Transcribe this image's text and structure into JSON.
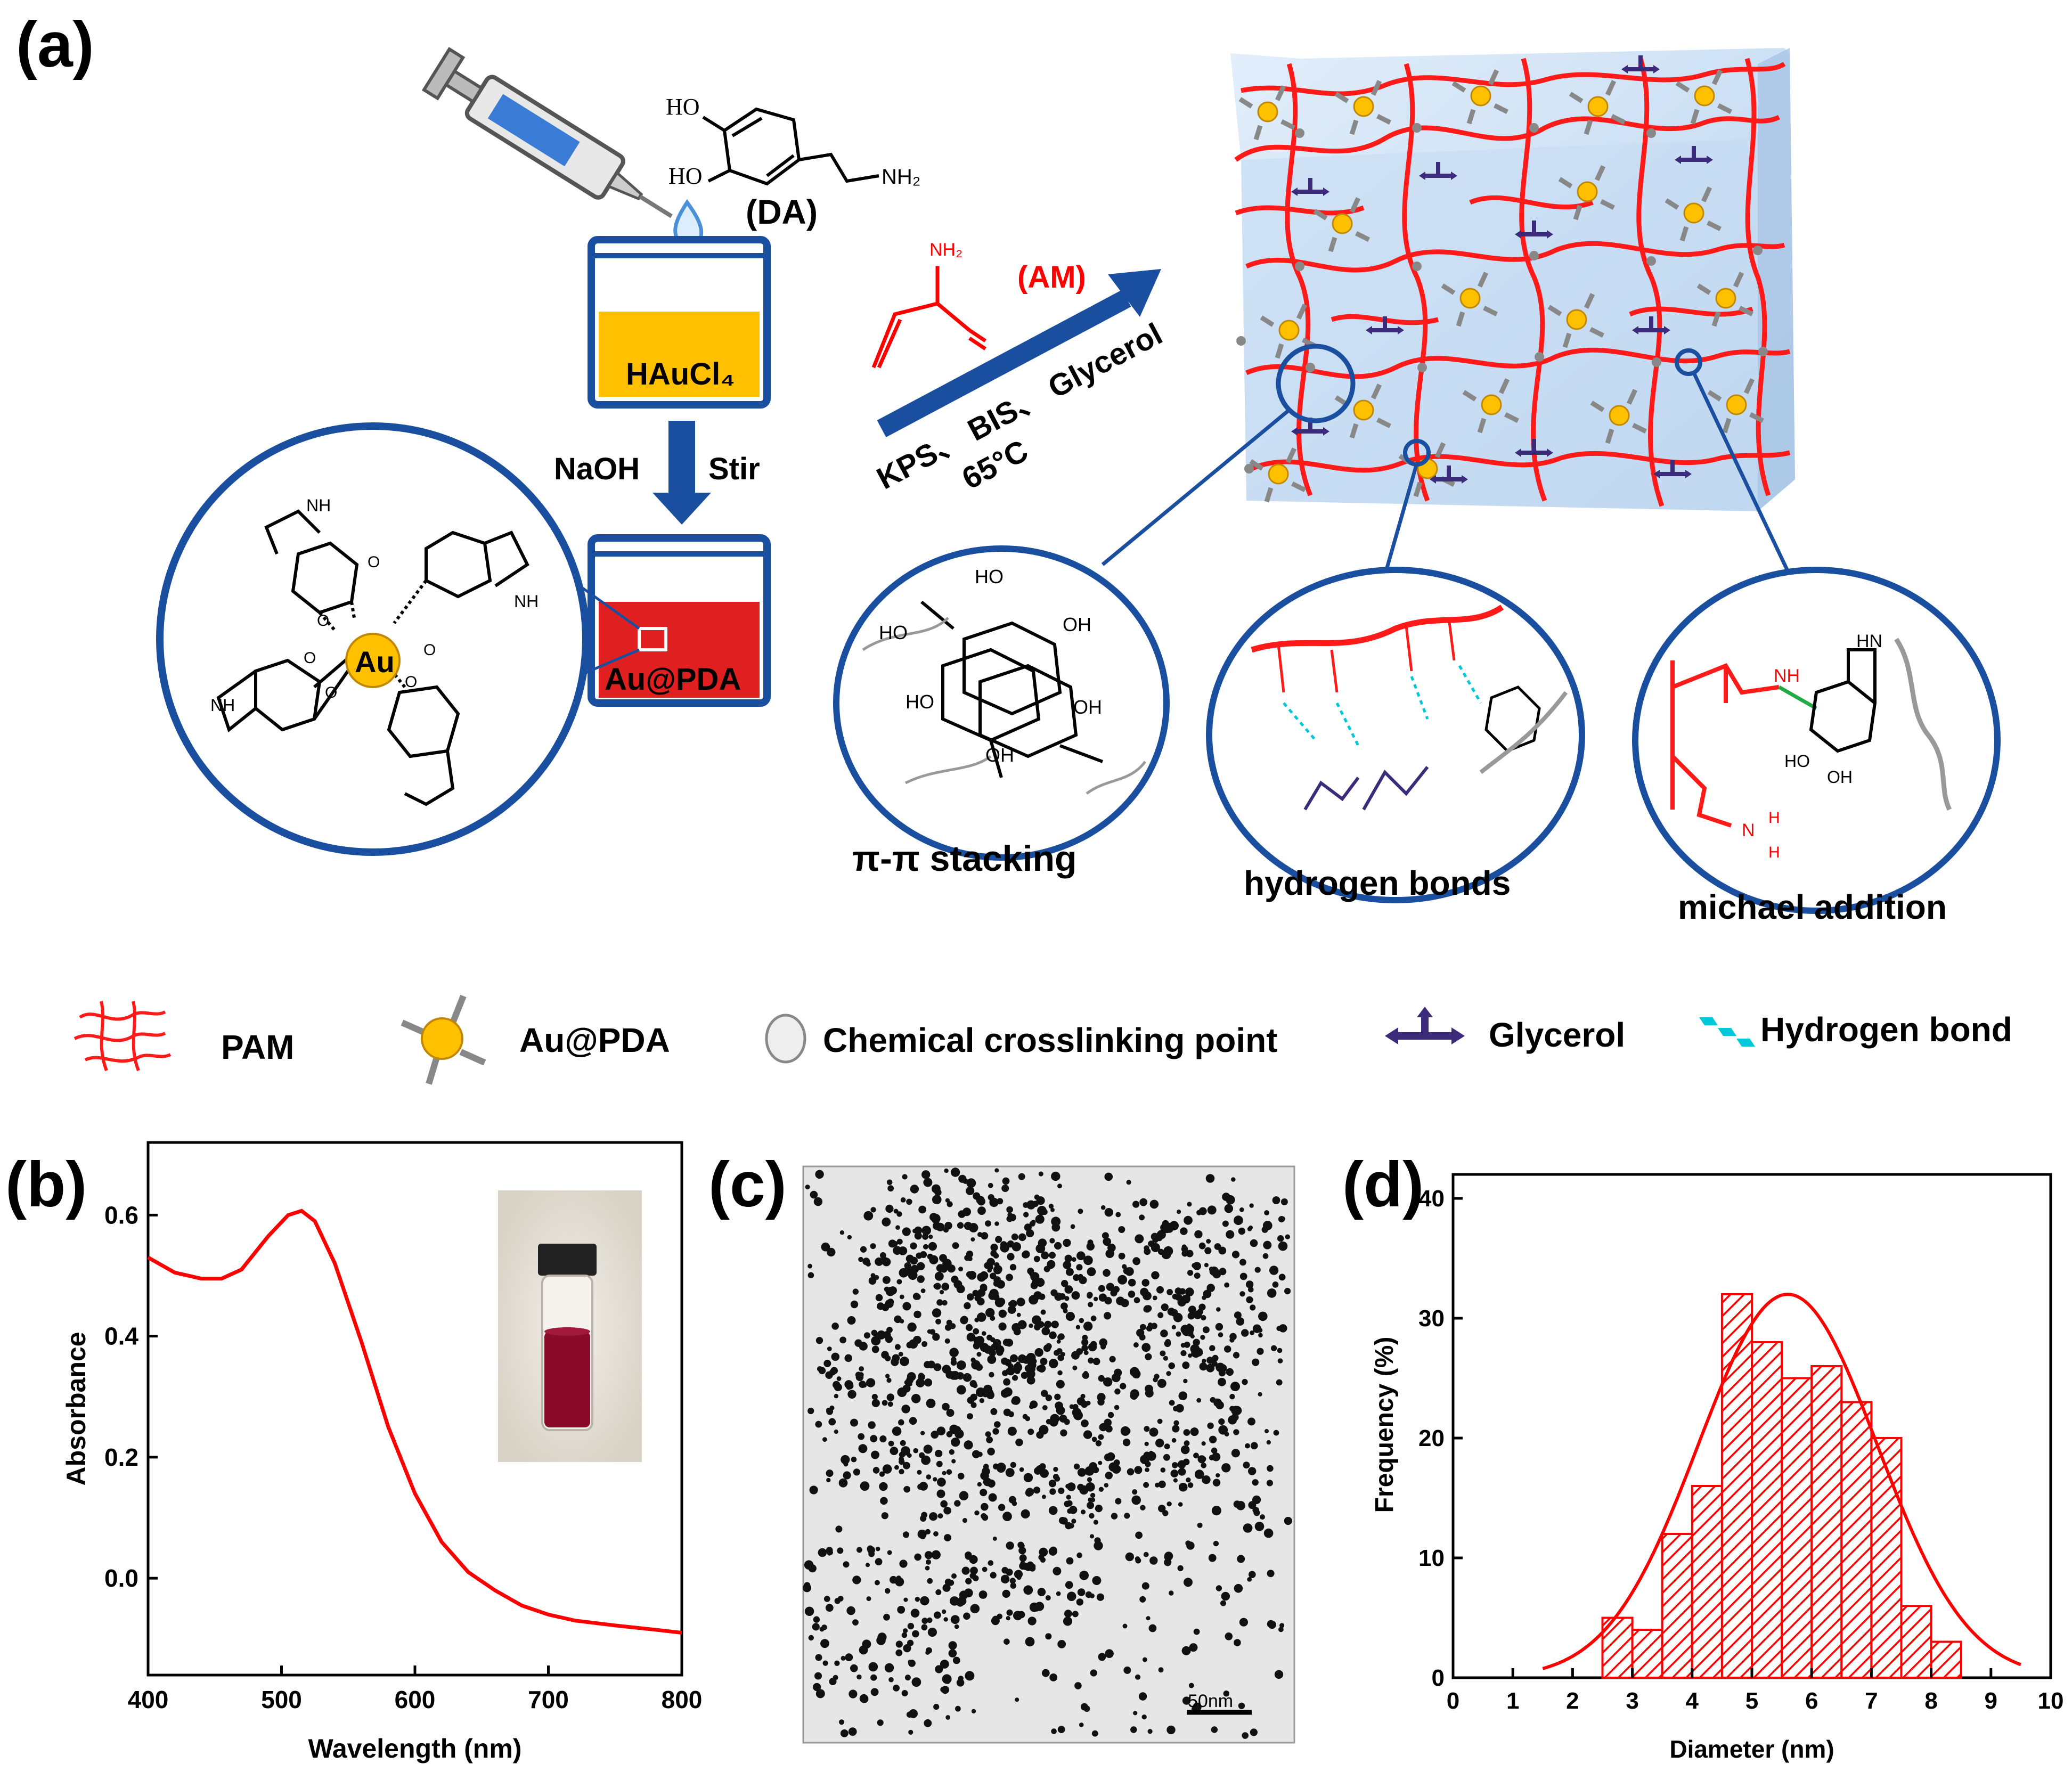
{
  "panel_a": {
    "label": "(a)",
    "dopamine_label": "(DA)",
    "dopamine_groups": {
      "oh1": "HO",
      "oh2": "HO",
      "amine": "NH₂"
    },
    "beaker1_label": "HAuCl₄",
    "step_left": "NaOH",
    "step_right": "Stir",
    "beaker2_label": "Au@PDA",
    "complex_center": "Au",
    "complex_groups": [
      "NH",
      "NH",
      "NH",
      "O",
      "O",
      "O",
      "O",
      "O",
      "O"
    ],
    "monomer_label": "(AM)",
    "monomer_group": "NH₂",
    "arrow_top": "KPS、 BIS、 Glycerol",
    "arrow_bottom": "65°C",
    "zoom_labels": [
      "π-π stacking",
      "hydrogen bonds",
      "michael addition"
    ],
    "pi_groups": [
      "HO",
      "OH",
      "HO",
      "OH",
      "HO",
      "OH"
    ],
    "michael_groups": [
      "NH",
      "HN",
      "HO",
      "OH",
      "N",
      "H",
      "H"
    ]
  },
  "legend": {
    "items": [
      "PAM",
      "Au@PDA",
      "Chemical crosslinking point",
      "Glycerol",
      "Hydrogen bond"
    ]
  },
  "panel_b": {
    "label": "(b)"
  },
  "panel_c": {
    "label": "(c)",
    "scale_bar": "50nm"
  },
  "panel_d": {
    "label": "(d)"
  },
  "colors": {
    "red": "#ff0000",
    "blue": "#1a4fa0",
    "gold": "#ffc000",
    "purple": "#3c2a7a",
    "cyan": "#00c8d8",
    "hydrogel": "#cfe2f5"
  },
  "chart_data": [
    {
      "type": "line",
      "panel": "b",
      "xlabel": "Wavelength (nm)",
      "ylabel": "Absorbance",
      "xlim": [
        400,
        800
      ],
      "ylim": [
        -0.16,
        0.72
      ],
      "xticks": [
        400,
        500,
        600,
        700,
        800
      ],
      "yticks": [
        0.0,
        0.2,
        0.4,
        0.6
      ],
      "ytick_labels": [
        "0.0",
        "0.2",
        "0.4",
        "0.6"
      ],
      "series": [
        {
          "color": "#ff0000",
          "x": [
            400,
            420,
            440,
            455,
            470,
            490,
            505,
            515,
            525,
            540,
            560,
            580,
            600,
            620,
            640,
            660,
            680,
            700,
            720,
            750,
            780,
            800
          ],
          "y": [
            0.53,
            0.505,
            0.495,
            0.495,
            0.51,
            0.565,
            0.6,
            0.607,
            0.59,
            0.52,
            0.39,
            0.25,
            0.14,
            0.06,
            0.01,
            -0.02,
            -0.045,
            -0.06,
            -0.07,
            -0.078,
            -0.085,
            -0.09
          ]
        }
      ],
      "grid": false
    },
    {
      "type": "bar",
      "panel": "d",
      "xlabel": "Diameter (nm)",
      "ylabel": "Frequency (%)",
      "xlim": [
        0,
        10
      ],
      "ylim": [
        0,
        42
      ],
      "xticks": [
        0,
        1,
        2,
        3,
        4,
        5,
        6,
        7,
        8,
        9,
        10
      ],
      "yticks": [
        0,
        10,
        20,
        30,
        40
      ],
      "bin_width": 0.5,
      "bin_starts": [
        2.5,
        3.0,
        3.5,
        4.0,
        4.5,
        5.0,
        5.5,
        6.0,
        6.5,
        7.0,
        7.5,
        8.0
      ],
      "values": [
        5,
        4,
        12,
        16,
        32,
        28,
        25,
        26,
        23,
        20,
        6,
        3
      ],
      "fit_curve": {
        "type": "gaussian",
        "center": 5.6,
        "peak": 32,
        "sigma": 1.5
      },
      "grid": false
    }
  ]
}
